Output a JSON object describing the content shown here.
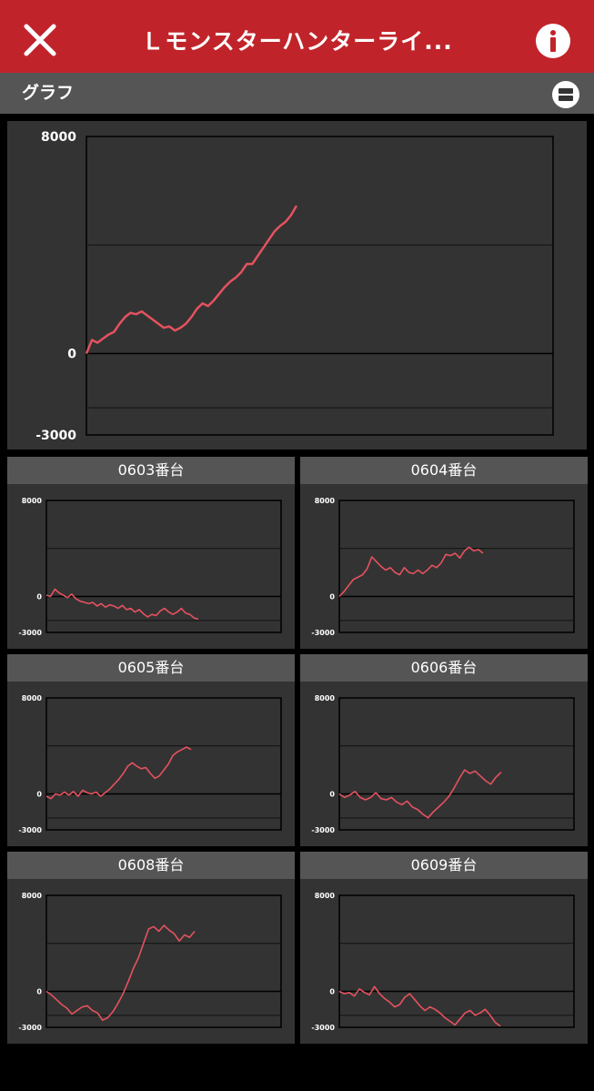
{
  "header": {
    "title": "Ｌモンスターハンターライ..."
  },
  "toolbar": {
    "label": "グラフ"
  },
  "main_chart": {
    "title": "",
    "y_ticks": [
      "8000",
      "0",
      "-3000"
    ]
  },
  "colors": {
    "header": "#c0242a",
    "line": "#e5525f",
    "panel": "#333333"
  },
  "chart_data": [
    {
      "type": "line",
      "title": "",
      "ylim": [
        -3000,
        8000
      ],
      "y_ticks": [
        8000,
        0,
        -3000
      ],
      "series": [
        {
          "values": [
            0,
            500,
            400,
            550,
            700,
            800,
            1100,
            1350,
            1500,
            1450,
            1550,
            1400,
            1250,
            1100,
            950,
            1000,
            850,
            950,
            1100,
            1350,
            1650,
            1850,
            1750,
            1950,
            2200,
            2450,
            2650,
            2800,
            3000,
            3300,
            3300,
            3600,
            3900,
            4200,
            4500,
            4700,
            4850,
            5100,
            5450
          ]
        }
      ]
    },
    {
      "type": "line",
      "title": "0603番台",
      "ylim": [
        -3000,
        8000
      ],
      "y_ticks": [
        8000,
        0,
        -3000
      ],
      "series": [
        {
          "values": [
            100,
            0,
            600,
            300,
            100,
            -100,
            200,
            -200,
            -400,
            -500,
            -600,
            -500,
            -800,
            -600,
            -900,
            -700,
            -800,
            -1000,
            -750,
            -1100,
            -1000,
            -1300,
            -1100,
            -1450,
            -1700,
            -1500,
            -1600,
            -1200,
            -1000,
            -1300,
            -1500,
            -1300,
            -1000,
            -1400,
            -1500,
            -1800,
            -1900
          ]
        }
      ]
    },
    {
      "type": "line",
      "title": "0604番台",
      "ylim": [
        -3000,
        8000
      ],
      "y_ticks": [
        8000,
        0,
        -3000
      ],
      "series": [
        {
          "values": [
            0,
            400,
            900,
            1400,
            1600,
            1800,
            2300,
            3300,
            2900,
            2500,
            2200,
            2400,
            2000,
            1800,
            2400,
            2000,
            1900,
            2200,
            1900,
            2200,
            2600,
            2400,
            2800,
            3500,
            3400,
            3600,
            3200,
            3800,
            4100,
            3800,
            3900,
            3600
          ]
        }
      ]
    },
    {
      "type": "line",
      "title": "0605番台",
      "ylim": [
        -3000,
        8000
      ],
      "y_ticks": [
        8000,
        0,
        -3000
      ],
      "series": [
        {
          "values": [
            -200,
            -400,
            0,
            -100,
            150,
            -100,
            200,
            -200,
            300,
            100,
            0,
            150,
            -200,
            100,
            400,
            800,
            1200,
            1700,
            2300,
            2600,
            2300,
            2100,
            2200,
            1700,
            1300,
            1500,
            2000,
            2500,
            3200,
            3500,
            3700,
            3900,
            3700
          ]
        }
      ]
    },
    {
      "type": "line",
      "title": "0606番台",
      "ylim": [
        -3000,
        8000
      ],
      "y_ticks": [
        8000,
        0,
        -3000
      ],
      "series": [
        {
          "values": [
            0,
            -300,
            -100,
            200,
            -300,
            -500,
            -300,
            100,
            -400,
            -500,
            -300,
            -700,
            -900,
            -600,
            -1100,
            -1300,
            -1700,
            -2000,
            -1500,
            -1100,
            -700,
            -200,
            500,
            1300,
            2000,
            1700,
            1900,
            1500,
            1100,
            800,
            1400,
            1800
          ]
        }
      ]
    },
    {
      "type": "line",
      "title": "0608番台",
      "ylim": [
        -3000,
        8000
      ],
      "y_ticks": [
        8000,
        0,
        -3000
      ],
      "series": [
        {
          "values": [
            0,
            -300,
            -700,
            -1100,
            -1400,
            -1900,
            -1600,
            -1300,
            -1200,
            -1600,
            -1800,
            -2400,
            -2200,
            -1700,
            -1000,
            -200,
            800,
            1900,
            2800,
            4000,
            5200,
            5400,
            5000,
            5500,
            5100,
            4800,
            4200,
            4700,
            4500,
            5000
          ]
        }
      ]
    },
    {
      "type": "line",
      "title": "0609番台",
      "ylim": [
        -3000,
        8000
      ],
      "y_ticks": [
        8000,
        0,
        -3000
      ],
      "series": [
        {
          "values": [
            0,
            -200,
            -100,
            -400,
            200,
            -100,
            -300,
            400,
            -200,
            -600,
            -900,
            -1300,
            -1100,
            -500,
            -200,
            -700,
            -1200,
            -1600,
            -1300,
            -1500,
            -1800,
            -2200,
            -2500,
            -2800,
            -2300,
            -1800,
            -1600,
            -2000,
            -1800,
            -1500,
            -2000,
            -2600,
            -2900
          ]
        }
      ]
    }
  ]
}
